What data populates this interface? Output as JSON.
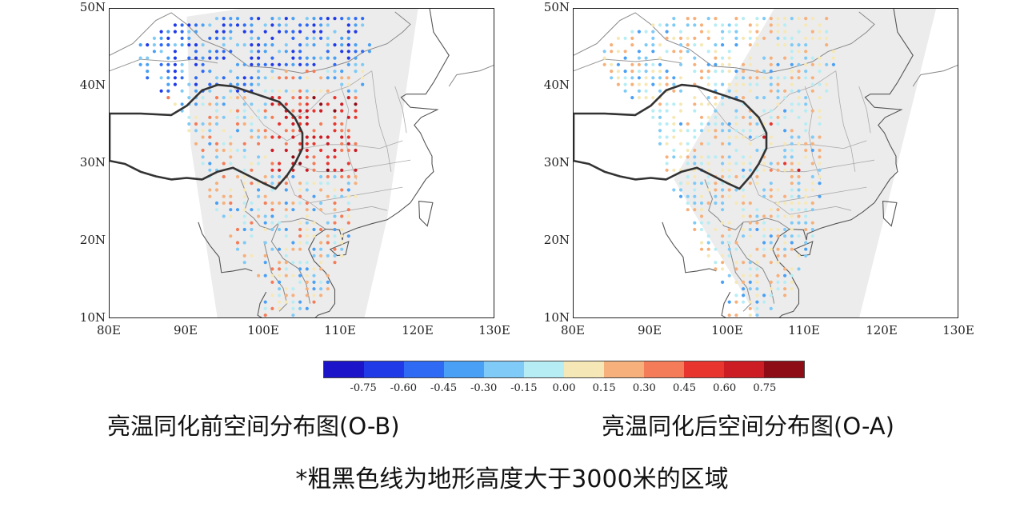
{
  "panels": [
    {
      "id": "left",
      "caption": "亮温同化前空间分布图(O-B)"
    },
    {
      "id": "right",
      "caption": "亮温同化后空间分布图(O-A)"
    }
  ],
  "axes": {
    "lat_labels": [
      "50N",
      "40N",
      "30N",
      "20N",
      "10N"
    ],
    "lon_labels": [
      "80E",
      "90E",
      "100E",
      "110E",
      "120E",
      "130E"
    ]
  },
  "colorbar": {
    "colors": [
      "#1c14c8",
      "#1f3ae6",
      "#2f6af5",
      "#4aa0f4",
      "#7fcaf6",
      "#b6edf4",
      "#f6e8b6",
      "#f6b07c",
      "#f47c58",
      "#e8362e",
      "#cc1c24",
      "#8e0c16"
    ],
    "labels": [
      "-0.75",
      "-0.60",
      "-0.45",
      "-0.30",
      "-0.15",
      "0.00",
      "0.15",
      "0.30",
      "0.45",
      "0.60",
      "0.75"
    ]
  },
  "footnote": "*粗黑色线为地形高度大于3000米的区域"
}
